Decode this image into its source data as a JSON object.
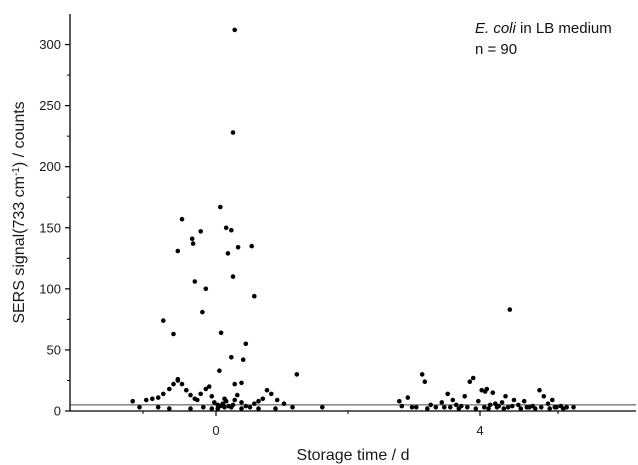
{
  "chart_data": {
    "type": "scatter",
    "xlabel": "Storage time / d",
    "ylabel": {
      "main": "SERS signal(733 cm",
      "sup": "-1",
      "rest": ") / counts"
    },
    "x_categories": [
      "0",
      "4"
    ],
    "ylim": [
      0,
      325
    ],
    "y_ticks": [
      0,
      50,
      100,
      150,
      200,
      250,
      300
    ],
    "grid": false,
    "reference_line": 5,
    "annotation": {
      "organism": "E. coli",
      "rest": " in LB medium",
      "n_label": "n = 90"
    },
    "colors": {
      "points": "#000000",
      "axis": "#000000",
      "reference_line": "#444444"
    },
    "series": [
      {
        "category": "0",
        "points": [
          [
            -0.98,
            8
          ],
          [
            -0.9,
            3
          ],
          [
            -0.82,
            9
          ],
          [
            -0.75,
            10
          ],
          [
            -0.68,
            11
          ],
          [
            -0.62,
            14
          ],
          [
            -0.55,
            18
          ],
          [
            -0.5,
            22
          ],
          [
            -0.45,
            26
          ],
          [
            -0.4,
            22
          ],
          [
            -0.35,
            17
          ],
          [
            -0.3,
            13
          ],
          [
            -0.25,
            10
          ],
          [
            -0.22,
            9
          ],
          [
            -0.18,
            14
          ],
          [
            -0.12,
            18
          ],
          [
            -0.08,
            20
          ],
          [
            -0.05,
            12
          ],
          [
            -0.02,
            7
          ],
          [
            0.02,
            5
          ],
          [
            0.05,
            4
          ],
          [
            0.08,
            6
          ],
          [
            0.1,
            10
          ],
          [
            0.12,
            8
          ],
          [
            0.15,
            4
          ],
          [
            0.18,
            3
          ],
          [
            0.2,
            5
          ],
          [
            0.22,
            9
          ],
          [
            0.25,
            13
          ],
          [
            0.3,
            7
          ],
          [
            0.35,
            4
          ],
          [
            0.4,
            3
          ],
          [
            0.45,
            6
          ],
          [
            0.5,
            8
          ],
          [
            0.55,
            10
          ],
          [
            0.6,
            17
          ],
          [
            0.65,
            14
          ],
          [
            0.72,
            9
          ],
          [
            0.8,
            6
          ],
          [
            0.9,
            3
          ],
          [
            1.25,
            3
          ],
          [
            -0.68,
            3
          ],
          [
            -0.55,
            2
          ],
          [
            -0.3,
            2
          ],
          [
            -0.15,
            3
          ],
          [
            -0.05,
            2
          ],
          [
            0.02,
            2
          ],
          [
            0.1,
            3
          ],
          [
            0.3,
            2
          ],
          [
            0.5,
            2
          ],
          [
            0.7,
            2
          ],
          [
            -0.62,
            74
          ],
          [
            -0.45,
            131
          ],
          [
            -0.4,
            157
          ],
          [
            -0.28,
            141
          ],
          [
            -0.27,
            137
          ],
          [
            -0.18,
            147
          ],
          [
            -0.16,
            81
          ],
          [
            -0.12,
            100
          ],
          [
            -0.25,
            106
          ],
          [
            -0.5,
            63
          ],
          [
            0.05,
            167
          ],
          [
            0.12,
            150
          ],
          [
            0.18,
            148
          ],
          [
            0.14,
            129
          ],
          [
            0.2,
            110
          ],
          [
            0.26,
            134
          ],
          [
            0.32,
            42
          ],
          [
            0.35,
            55
          ],
          [
            0.42,
            135
          ],
          [
            0.45,
            94
          ],
          [
            0.06,
            64
          ],
          [
            0.18,
            44
          ],
          [
            0.04,
            33
          ],
          [
            0.22,
            312
          ],
          [
            0.2,
            228
          ],
          [
            0.95,
            30
          ],
          [
            0.3,
            23
          ],
          [
            0.22,
            22
          ],
          [
            -0.45,
            25
          ]
        ]
      },
      {
        "category": "4",
        "points": [
          [
            -0.95,
            8
          ],
          [
            -0.92,
            4
          ],
          [
            -0.85,
            11
          ],
          [
            -0.8,
            3
          ],
          [
            -0.68,
            30
          ],
          [
            -0.65,
            24
          ],
          [
            -0.58,
            5
          ],
          [
            -0.52,
            3
          ],
          [
            -0.45,
            7
          ],
          [
            -0.38,
            14
          ],
          [
            -0.32,
            9
          ],
          [
            -0.28,
            5
          ],
          [
            -0.22,
            4
          ],
          [
            -0.18,
            12
          ],
          [
            -0.12,
            24
          ],
          [
            -0.08,
            27
          ],
          [
            -0.02,
            8
          ],
          [
            0.02,
            17
          ],
          [
            0.06,
            16
          ],
          [
            0.08,
            18
          ],
          [
            0.12,
            5
          ],
          [
            0.15,
            15
          ],
          [
            0.18,
            6
          ],
          [
            0.22,
            4
          ],
          [
            0.26,
            7
          ],
          [
            0.3,
            12
          ],
          [
            0.35,
            83
          ],
          [
            0.38,
            4
          ],
          [
            0.4,
            9
          ],
          [
            0.45,
            5
          ],
          [
            0.52,
            8
          ],
          [
            0.58,
            3
          ],
          [
            0.62,
            4
          ],
          [
            0.7,
            17
          ],
          [
            0.75,
            12
          ],
          [
            0.8,
            6
          ],
          [
            0.85,
            9
          ],
          [
            0.9,
            3
          ],
          [
            0.95,
            4
          ],
          [
            1.02,
            3
          ],
          [
            1.1,
            3
          ],
          [
            -0.75,
            3
          ],
          [
            -0.62,
            2
          ],
          [
            -0.42,
            3
          ],
          [
            -0.35,
            3
          ],
          [
            -0.25,
            2
          ],
          [
            -0.15,
            3
          ],
          [
            -0.05,
            2
          ],
          [
            0.05,
            3
          ],
          [
            0.1,
            2
          ],
          [
            0.2,
            3
          ],
          [
            0.28,
            2
          ],
          [
            0.33,
            3
          ],
          [
            0.48,
            2
          ],
          [
            0.55,
            3
          ],
          [
            0.65,
            2
          ],
          [
            0.72,
            3
          ],
          [
            0.82,
            2
          ],
          [
            0.88,
            3
          ],
          [
            0.98,
            2
          ]
        ]
      }
    ]
  }
}
